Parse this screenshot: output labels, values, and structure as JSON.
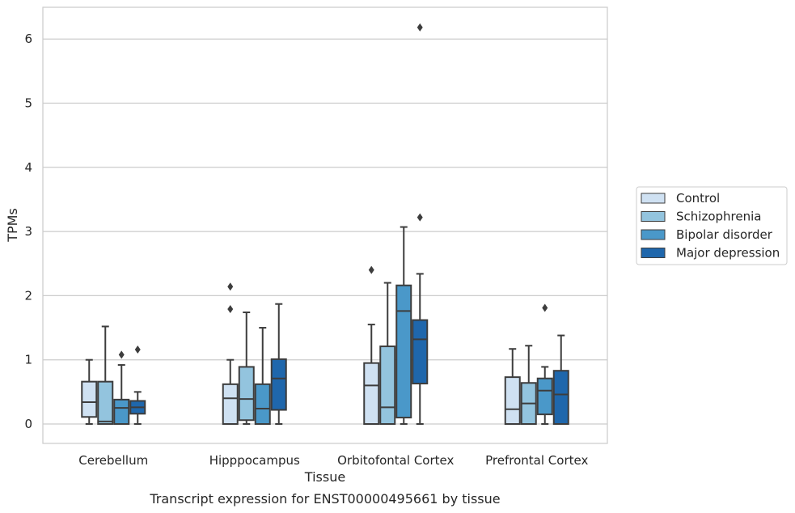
{
  "chart_data": {
    "type": "box",
    "title": "Transcript expression for ENST00000495661 by tissue",
    "xlabel": "Tissue",
    "ylabel": "TPMs",
    "ylim": [
      -0.3,
      6.5
    ],
    "yticks": [
      0,
      1,
      2,
      3,
      4,
      5,
      6
    ],
    "grid": "horizontal",
    "legend_position": "right",
    "categories": [
      "Cerebellum",
      "Hipppocampus",
      "Orbitofontal Cortex",
      "Prefrontal Cortex"
    ],
    "series": [
      {
        "name": "Control",
        "color": "#cfe1f2",
        "boxes": [
          {
            "whislo": 0.0,
            "q1": 0.11,
            "med": 0.34,
            "q3": 0.66,
            "whishi": 1.0,
            "fliers": []
          },
          {
            "whislo": 0.0,
            "q1": 0.0,
            "med": 0.4,
            "q3": 0.62,
            "whishi": 1.0,
            "fliers": [
              1.79,
              2.14
            ]
          },
          {
            "whislo": 0.0,
            "q1": 0.0,
            "med": 0.6,
            "q3": 0.95,
            "whishi": 1.55,
            "fliers": [
              2.4
            ]
          },
          {
            "whislo": 0.0,
            "q1": 0.0,
            "med": 0.23,
            "q3": 0.73,
            "whishi": 1.17,
            "fliers": []
          }
        ]
      },
      {
        "name": "Schizophrenia",
        "color": "#93c4de",
        "boxes": [
          {
            "whislo": 0.0,
            "q1": 0.0,
            "med": 0.04,
            "q3": 0.66,
            "whishi": 1.52,
            "fliers": []
          },
          {
            "whislo": 0.0,
            "q1": 0.06,
            "med": 0.39,
            "q3": 0.89,
            "whishi": 1.74,
            "fliers": []
          },
          {
            "whislo": 0.0,
            "q1": 0.0,
            "med": 0.26,
            "q3": 1.21,
            "whishi": 2.2,
            "fliers": []
          },
          {
            "whislo": 0.0,
            "q1": 0.0,
            "med": 0.32,
            "q3": 0.64,
            "whishi": 1.22,
            "fliers": []
          }
        ]
      },
      {
        "name": "Bipolar disorder",
        "color": "#4a98c9",
        "boxes": [
          {
            "whislo": 0.0,
            "q1": 0.0,
            "med": 0.25,
            "q3": 0.38,
            "whishi": 0.92,
            "fliers": [
              1.08
            ]
          },
          {
            "whislo": 0.0,
            "q1": 0.0,
            "med": 0.24,
            "q3": 0.62,
            "whishi": 1.5,
            "fliers": []
          },
          {
            "whislo": 0.0,
            "q1": 0.1,
            "med": 1.76,
            "q3": 2.16,
            "whishi": 3.07,
            "fliers": []
          },
          {
            "whislo": 0.0,
            "q1": 0.15,
            "med": 0.52,
            "q3": 0.71,
            "whishi": 0.89,
            "fliers": [
              1.81
            ]
          }
        ]
      },
      {
        "name": "Major depression",
        "color": "#1f67ac",
        "boxes": [
          {
            "whislo": 0.0,
            "q1": 0.16,
            "med": 0.26,
            "q3": 0.36,
            "whishi": 0.5,
            "fliers": [
              1.16
            ]
          },
          {
            "whislo": 0.0,
            "q1": 0.22,
            "med": 0.71,
            "q3": 1.01,
            "whishi": 1.87,
            "fliers": []
          },
          {
            "whislo": 0.0,
            "q1": 0.63,
            "med": 1.32,
            "q3": 1.62,
            "whishi": 2.34,
            "fliers": [
              3.22,
              6.18
            ]
          },
          {
            "whislo": 0.0,
            "q1": 0.0,
            "med": 0.46,
            "q3": 0.83,
            "whishi": 1.38,
            "fliers": []
          }
        ]
      }
    ]
  }
}
